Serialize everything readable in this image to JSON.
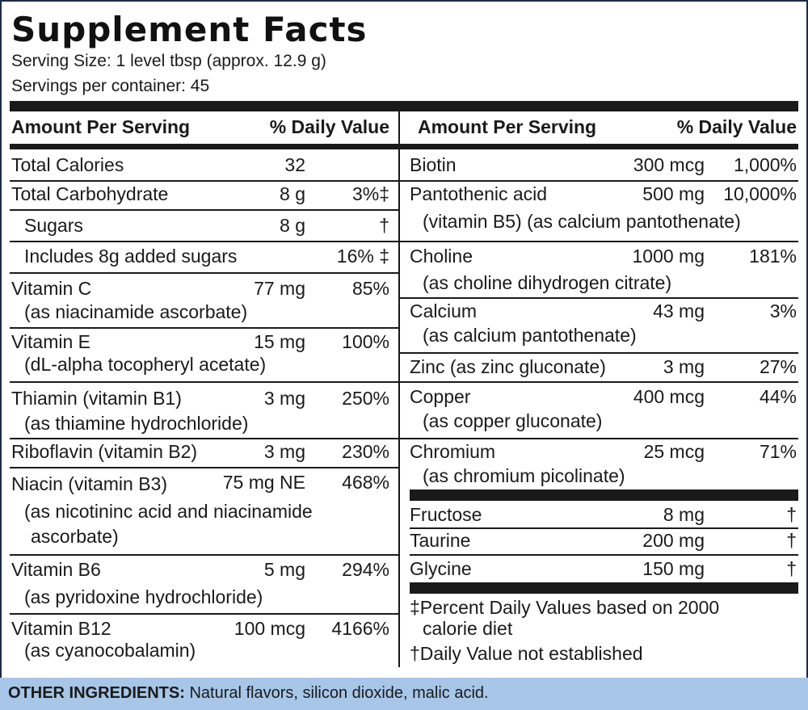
{
  "title": "Supplement Facts",
  "serving_size": "Serving Size: 1 level tbsp (approx. 12.9 g)",
  "servings_per_container": "Servings per container: 45",
  "headers": {
    "amount": "Amount Per Serving",
    "dv": "% Daily Value"
  },
  "left": {
    "total_calories": {
      "name": "Total Calories",
      "amount": "32"
    },
    "total_carbohydrate": {
      "name": "Total Carbohydrate",
      "amount": "8 g",
      "dv": "3%‡"
    },
    "sugars": {
      "name": "Sugars",
      "amount": "8 g",
      "dv": "†"
    },
    "added_sugars": {
      "name": "Includes 8g added sugars",
      "dv": "16% ‡"
    },
    "vitamin_c": {
      "name": "Vitamin C",
      "amount": "77 mg",
      "dv": "85%",
      "sub": "(as niacinamide ascorbate)"
    },
    "vitamin_e": {
      "name": "Vitamin E",
      "amount": "15 mg",
      "dv": "100%",
      "sub": "(dL-alpha tocopheryl acetate)"
    },
    "thiamin": {
      "name": "Thiamin (vitamin B1)",
      "amount": "3 mg",
      "dv": "250%",
      "sub": "(as thiamine hydrochloride)"
    },
    "riboflavin": {
      "name": "Riboflavin (vitamin B2)",
      "amount": "3 mg",
      "dv": "230%"
    },
    "niacin": {
      "name": "Niacin (vitamin B3)",
      "amount": "75 mg NE",
      "dv": "468%",
      "sub1": "(as nicotininc acid and niacinamide",
      "sub2": "ascorbate)"
    },
    "vitamin_b6": {
      "name": "Vitamin B6",
      "amount": "5 mg",
      "dv": "294%",
      "sub": "(as pyridoxine hydrochloride)"
    },
    "vitamin_b12": {
      "name": "Vitamin B12",
      "amount": "100 mcg",
      "dv": "4166%",
      "sub": "(as cyanocobalamin)"
    }
  },
  "right": {
    "biotin": {
      "name": "Biotin",
      "amount": "300 mcg",
      "dv": "1,000%"
    },
    "pantothenic": {
      "name": "Pantothenic acid",
      "amount": "500 mg",
      "dv": "10,000%",
      "sub": "(vitamin B5) (as calcium pantothenate)"
    },
    "choline": {
      "name": "Choline",
      "amount": "1000 mg",
      "dv": "181%",
      "sub": "(as choline dihydrogen citrate)"
    },
    "calcium": {
      "name": "Calcium",
      "amount": "43 mg",
      "dv": "3%",
      "sub": "(as calcium pantothenate)"
    },
    "zinc": {
      "name": "Zinc (as zinc gluconate)",
      "amount": "3 mg",
      "dv": "27%"
    },
    "copper": {
      "name": "Copper",
      "amount": "400 mcg",
      "dv": "44%",
      "sub": "(as copper gluconate)"
    },
    "chromium": {
      "name": "Chromium",
      "amount": "25 mcg",
      "dv": "71%",
      "sub": "(as chromium picolinate)"
    },
    "fructose": {
      "name": "Fructose",
      "amount": "8 mg",
      "dv": "†"
    },
    "taurine": {
      "name": "Taurine",
      "amount": "200 mg",
      "dv": "†"
    },
    "glycine": {
      "name": "Glycine",
      "amount": "150 mg",
      "dv": "†"
    }
  },
  "notes": {
    "note1_line1": "‡Percent Daily Values based on 2000",
    "note1_line2": "calorie diet",
    "note2": "†Daily Value not established"
  },
  "other_ingredients": {
    "label": "OTHER INGREDIENTS:",
    "text": " Natural flavors, silicon dioxide, malic acid."
  },
  "colors": {
    "footer_bg": "#a7c6e8",
    "border": "#1c2b4a",
    "text": "#1a1a1a"
  }
}
